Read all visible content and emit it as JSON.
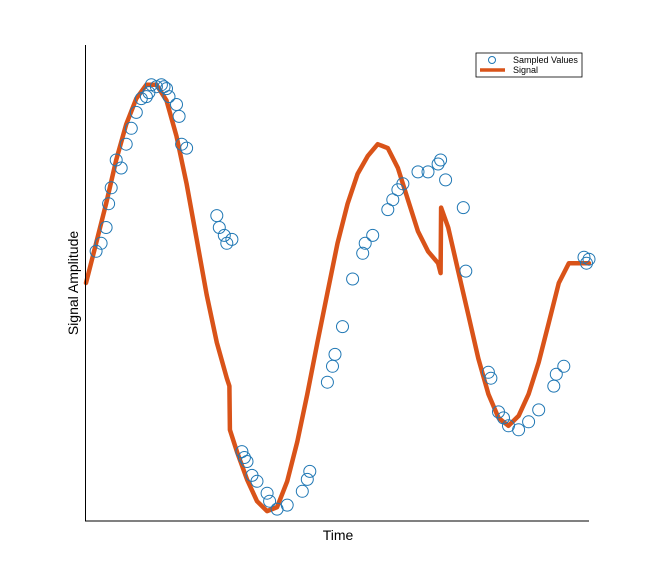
{
  "chart_data": {
    "type": "line",
    "title": "",
    "xlabel": "Time",
    "ylabel": "Signal Amplitude",
    "xlim": [
      0,
      100
    ],
    "ylim": [
      -1.2,
      1.2
    ],
    "grid": false,
    "legend_placement": "top-right",
    "legend": {
      "sampled": "Sampled Values",
      "signal": "Signal"
    },
    "colors": {
      "sampled": "#1f77b4",
      "signal": "#d95319"
    },
    "series": [
      {
        "name": "Signal",
        "style": "line",
        "x": [
          0,
          2,
          4,
          6,
          8,
          10,
          12,
          14,
          16,
          18,
          20,
          22,
          24,
          26,
          28,
          28.5,
          28.6,
          30,
          32,
          34,
          36,
          38,
          40,
          42,
          44,
          46,
          48,
          50,
          52,
          54,
          56,
          58,
          60,
          62,
          64,
          66,
          68,
          70,
          70.5,
          70.6,
          72,
          74,
          76,
          78,
          80,
          82,
          84,
          86,
          88,
          90,
          92,
          94,
          96,
          98,
          100
        ],
        "y": [
          0.0,
          0.2,
          0.4,
          0.62,
          0.8,
          0.93,
          1.0,
          1.0,
          0.92,
          0.74,
          0.5,
          0.22,
          -0.06,
          -0.3,
          -0.48,
          -0.52,
          -0.74,
          -0.85,
          -0.99,
          -1.1,
          -1.15,
          -1.13,
          -1.0,
          -0.8,
          -0.56,
          -0.3,
          -0.05,
          0.2,
          0.4,
          0.55,
          0.64,
          0.7,
          0.68,
          0.58,
          0.42,
          0.26,
          0.16,
          0.1,
          0.05,
          0.38,
          0.28,
          0.06,
          -0.16,
          -0.38,
          -0.56,
          -0.68,
          -0.72,
          -0.67,
          -0.56,
          -0.4,
          -0.2,
          0.0,
          0.1,
          0.1,
          0.1
        ]
      },
      {
        "name": "Sampled Values",
        "style": "markers",
        "x": [
          2,
          3,
          4,
          4.5,
          5,
          6,
          7,
          8,
          9,
          10,
          11,
          12,
          12.5,
          13,
          14,
          15,
          15.5,
          16,
          16.5,
          18,
          18.5,
          19,
          20,
          26,
          26.5,
          27.5,
          28,
          29,
          31,
          31.5,
          32,
          33,
          34,
          36,
          36.5,
          38,
          40,
          43,
          44,
          44.5,
          48,
          49,
          49.5,
          51,
          53,
          55,
          55.5,
          57,
          60,
          61,
          62,
          63,
          66,
          68,
          70,
          70.5,
          71.5,
          75,
          75.5,
          80,
          80.5,
          82,
          83,
          84,
          86,
          88,
          90,
          93,
          93.5,
          95,
          99,
          99.5,
          100
        ],
        "y": [
          0.16,
          0.2,
          0.28,
          0.4,
          0.48,
          0.62,
          0.58,
          0.7,
          0.78,
          0.86,
          0.93,
          0.94,
          0.96,
          1.0,
          0.99,
          1.0,
          0.99,
          0.98,
          0.94,
          0.9,
          0.84,
          0.7,
          0.68,
          0.34,
          0.28,
          0.24,
          0.2,
          0.22,
          -0.85,
          -0.88,
          -0.9,
          -0.97,
          -1.0,
          -1.06,
          -1.1,
          -1.14,
          -1.12,
          -1.05,
          -0.99,
          -0.95,
          -0.5,
          -0.42,
          -0.36,
          -0.22,
          0.02,
          0.15,
          0.2,
          0.24,
          0.37,
          0.42,
          0.47,
          0.5,
          0.56,
          0.56,
          0.6,
          0.62,
          0.52,
          0.38,
          0.06,
          -0.45,
          -0.48,
          -0.65,
          -0.68,
          -0.72,
          -0.74,
          -0.7,
          -0.64,
          -0.52,
          -0.46,
          -0.42,
          0.13,
          0.1,
          0.12
        ]
      }
    ]
  }
}
